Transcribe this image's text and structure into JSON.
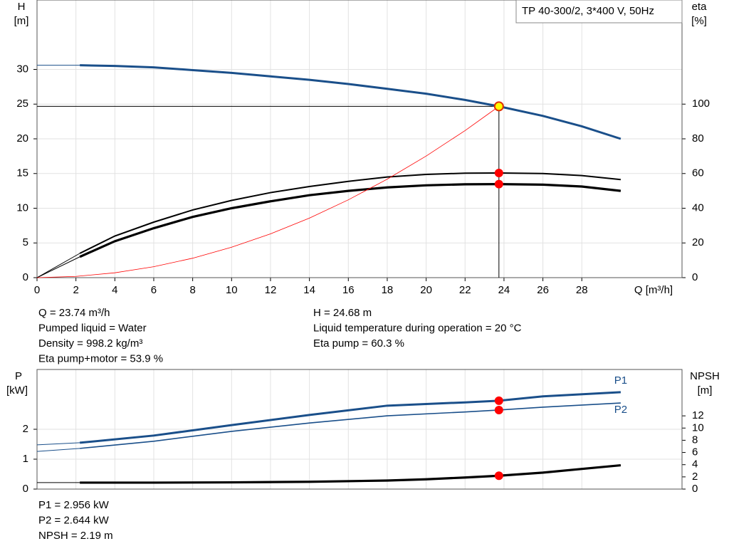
{
  "chart_data": [
    {
      "type": "line",
      "title": "TP 40-300/2, 3*400 V, 50Hz",
      "xlabel": "Q [m³/h]",
      "ylabel": "H",
      "yunit": "[m]",
      "y2label": "eta",
      "y2unit": "[%]",
      "xlim": [
        0,
        33.15
      ],
      "ylim": [
        0,
        40
      ],
      "y2lim": [
        0,
        160
      ],
      "xticks": [
        0,
        2,
        4,
        6,
        8,
        10,
        12,
        14,
        16,
        18,
        20,
        22,
        24,
        26,
        28
      ],
      "yticks": [
        0,
        5,
        10,
        15,
        20,
        25,
        30
      ],
      "y2ticks": [
        0,
        20,
        40,
        60,
        80,
        100
      ],
      "grid": true,
      "operating_point": {
        "x": 23.74,
        "y": 24.68
      },
      "series": [
        {
          "color": "#1a4f8a",
          "width": 3,
          "thin_start": true,
          "marker_color": "#ffff00",
          "x": [
            0,
            2.2,
            4,
            6,
            8,
            10,
            12,
            14,
            16,
            18,
            20,
            22,
            23.74,
            26,
            28,
            30
          ],
          "values": [
            30.6,
            30.6,
            30.5,
            30.3,
            29.9,
            29.5,
            29.0,
            28.5,
            27.9,
            27.2,
            26.5,
            25.6,
            24.68,
            23.3,
            21.8,
            20.0
          ]
        },
        {
          "color": "#000000",
          "width": 2,
          "thin_start": true,
          "axis": "y2",
          "marker_color": "#ff0000",
          "x": [
            0,
            2.2,
            4,
            6,
            8,
            10,
            12,
            14,
            16,
            18,
            20,
            22,
            23.74,
            26,
            28,
            30
          ],
          "values": [
            0,
            14,
            24,
            32,
            39,
            44.5,
            49,
            52.5,
            55.5,
            58,
            59.5,
            60.2,
            60.3,
            60,
            58.8,
            56.5
          ]
        },
        {
          "color": "#000000",
          "width": 3.2,
          "thin_start": true,
          "axis": "y2",
          "marker_color": "#ff0000",
          "x": [
            0,
            2.2,
            4,
            6,
            8,
            10,
            12,
            14,
            16,
            18,
            20,
            22,
            23.74,
            26,
            28,
            30
          ],
          "values": [
            0,
            12,
            21,
            28.5,
            35,
            40,
            44,
            47.5,
            50,
            52,
            53.2,
            53.8,
            53.9,
            53.6,
            52.5,
            50
          ]
        },
        {
          "color": "#ff0000",
          "width": 0.8,
          "x": [
            0,
            2,
            4,
            6,
            8,
            10,
            12,
            14,
            16,
            18,
            20,
            22,
            23.74
          ],
          "values": [
            0,
            0.18,
            0.7,
            1.58,
            2.8,
            4.38,
            6.31,
            8.58,
            11.21,
            14.19,
            17.52,
            21.19,
            24.68
          ]
        }
      ],
      "info_left": [
        "Q = 23.74 m³/h",
        "Pumped liquid = Water",
        "Density = 998.2 kg/m³",
        "Eta pump+motor = 53.9 %"
      ],
      "info_right": [
        "H = 24.68 m",
        "Liquid temperature during operation = 20 °C",
        "Eta pump = 60.3 %"
      ]
    },
    {
      "type": "line",
      "ylabel": "P",
      "yunit": "[kW]",
      "y2label": "NPSH",
      "y2unit": "[m]",
      "xlim": [
        0,
        33.15
      ],
      "ylim": [
        0,
        4
      ],
      "y2lim": [
        0,
        19.6
      ],
      "yticks": [
        0,
        1,
        2
      ],
      "y2ticks": [
        0,
        2,
        4,
        6,
        8,
        10,
        12
      ],
      "grid": true,
      "series": [
        {
          "name": "P1",
          "color": "#1a4f8a",
          "width": 3,
          "thin_start": true,
          "marker_color": "#ff0000",
          "x": [
            0,
            2.2,
            6,
            10,
            14,
            18,
            22,
            23.74,
            26,
            30
          ],
          "values": [
            1.48,
            1.55,
            1.79,
            2.14,
            2.48,
            2.79,
            2.9,
            2.956,
            3.1,
            3.24
          ]
        },
        {
          "name": "P2",
          "color": "#1a4f8a",
          "width": 1.6,
          "thin_start": true,
          "marker_color": "#ff0000",
          "x": [
            0,
            2.2,
            6,
            10,
            14,
            18,
            22,
            23.74,
            26,
            30
          ],
          "values": [
            1.26,
            1.36,
            1.6,
            1.93,
            2.21,
            2.45,
            2.58,
            2.644,
            2.74,
            2.88
          ]
        },
        {
          "color": "#000000",
          "width": 3.2,
          "thin_start": true,
          "axis": "y2",
          "marker_color": "#ff0000",
          "x": [
            0,
            2.2,
            6,
            10,
            14,
            18,
            20,
            22,
            23.74,
            26,
            28,
            30
          ],
          "values": [
            1.06,
            1.06,
            1.06,
            1.1,
            1.2,
            1.4,
            1.6,
            1.9,
            2.19,
            2.7,
            3.3,
            3.9
          ]
        }
      ],
      "info_left": [
        "P1 = 2.956 kW",
        "P2 = 2.644 kW",
        "NPSH = 2.19 m"
      ]
    }
  ]
}
